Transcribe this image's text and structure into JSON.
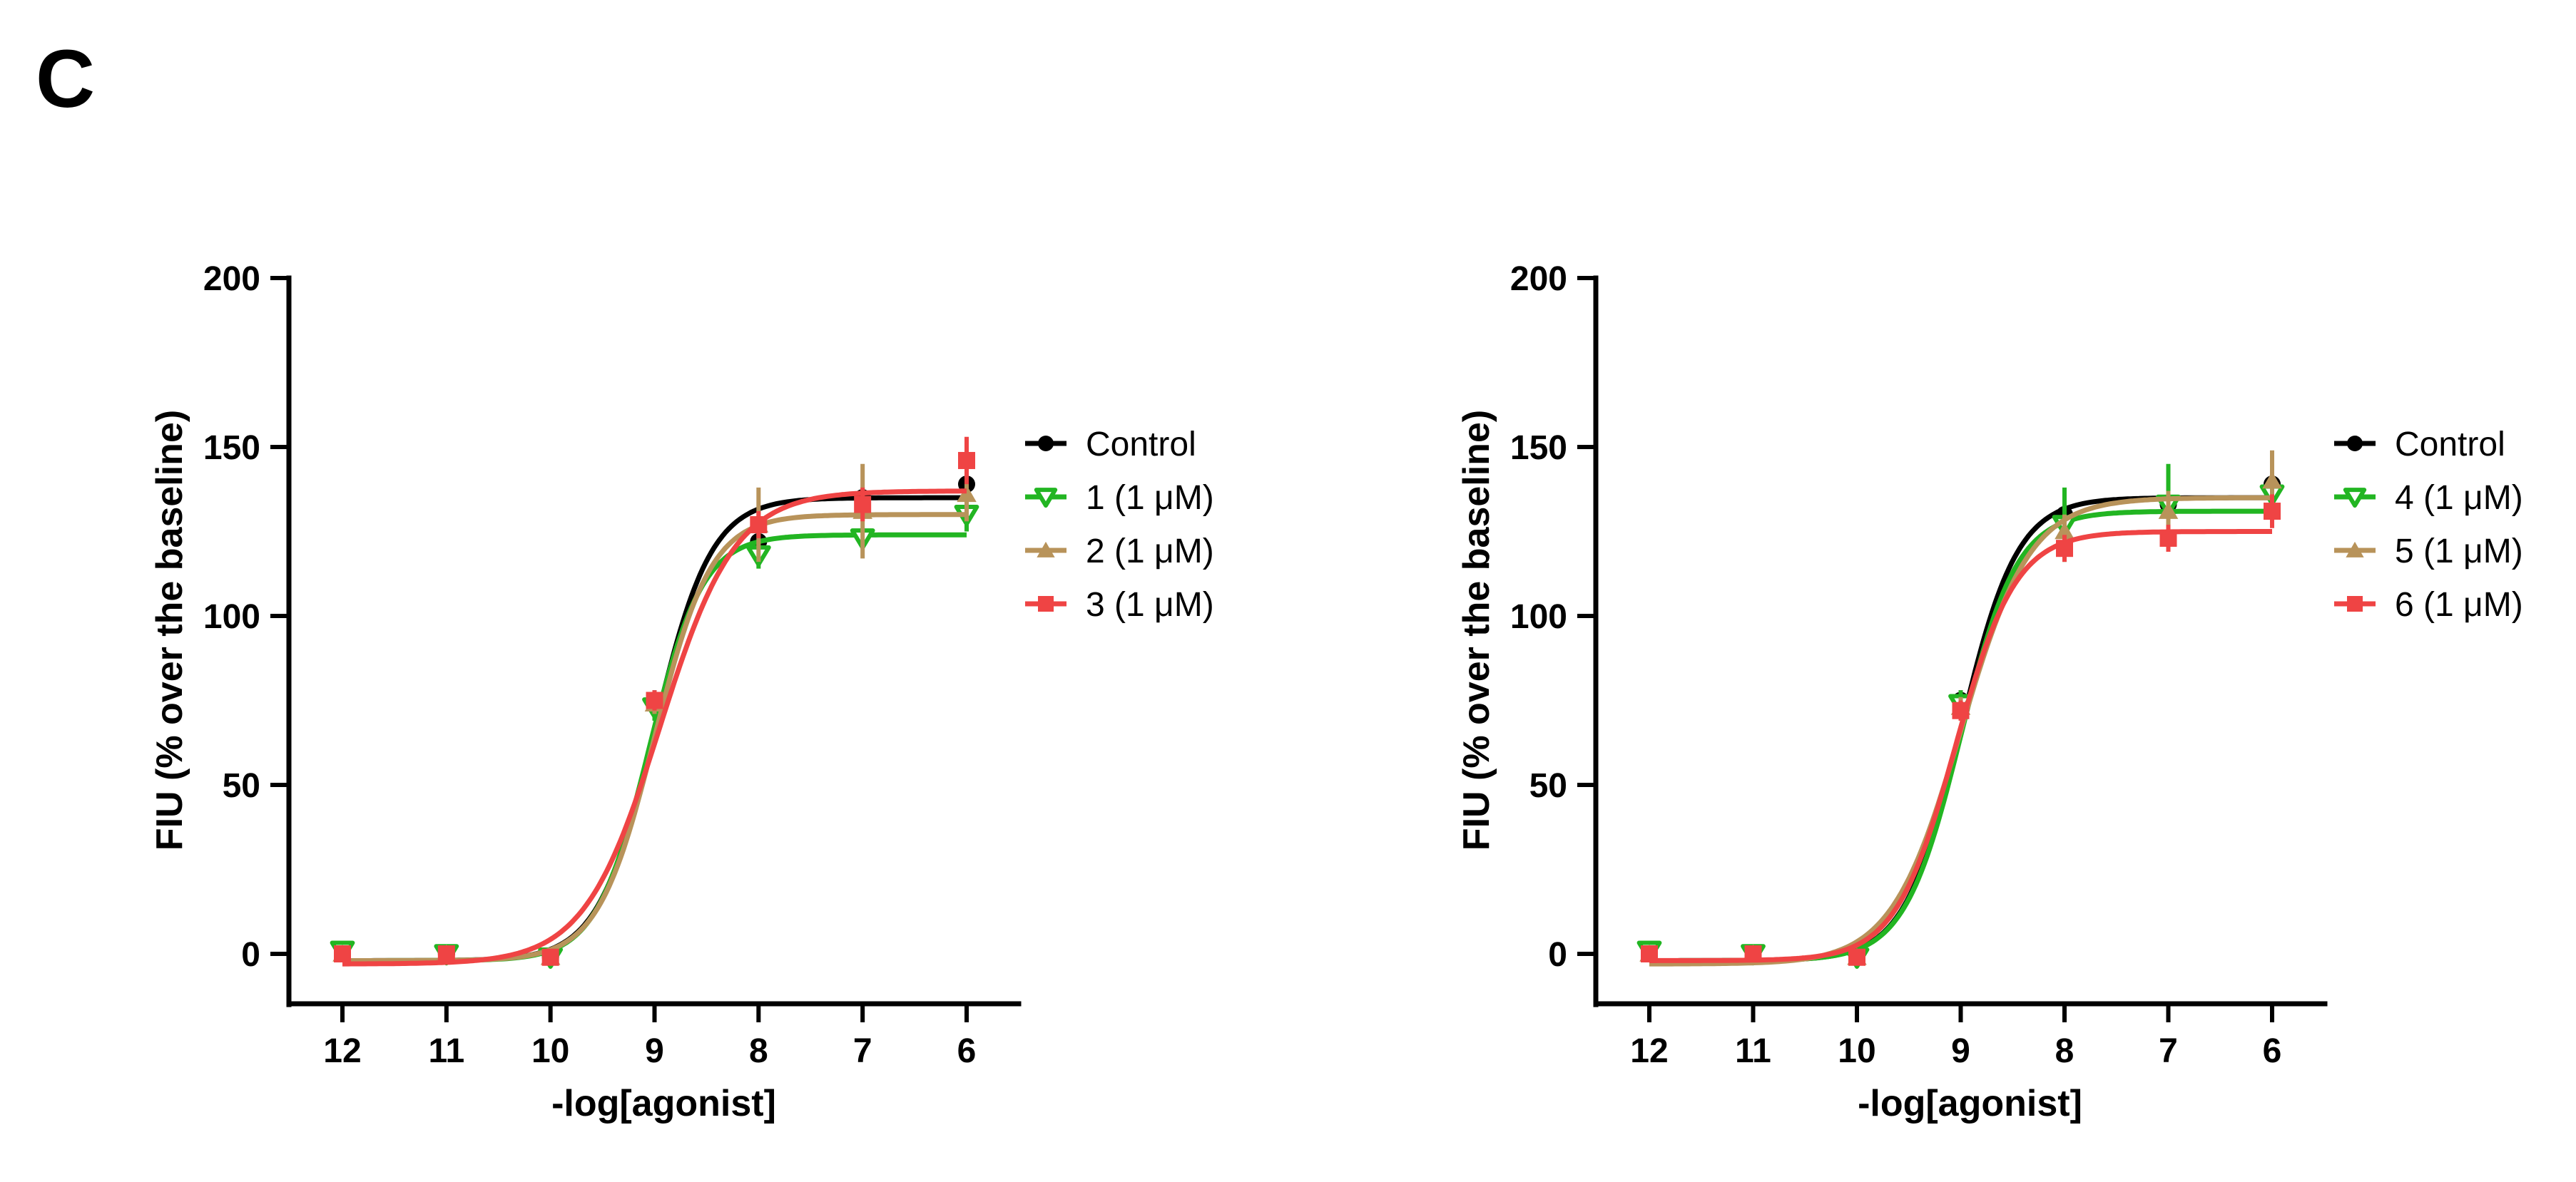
{
  "panel_label": "C",
  "chart_data": [
    {
      "type": "line",
      "xlabel": "-log[agonist]",
      "ylabel": "FIU (% over the baseline)",
      "x_ticks": [
        12,
        11,
        10,
        9,
        8,
        7,
        6
      ],
      "y_ticks": [
        0,
        50,
        100,
        150,
        200
      ],
      "xlim": [
        12.5,
        5.5
      ],
      "ylim": [
        -15,
        200
      ],
      "x_reversed": true,
      "grid": false,
      "legend_position": "right",
      "x": [
        12,
        11,
        10,
        9,
        8,
        7,
        6
      ],
      "series": [
        {
          "name": "Control",
          "color": "#000000",
          "marker": "circle",
          "values": [
            0,
            0,
            -1,
            75,
            122,
            135,
            139
          ],
          "errors": [
            1,
            1,
            1,
            3,
            3,
            2,
            4
          ],
          "fit": {
            "bottom": -2,
            "top": 135,
            "logEC50": -9.0,
            "hill": 1.6
          }
        },
        {
          "name": "1 (1 μM)",
          "color": "#22b522",
          "marker": "triangle-down",
          "values": [
            1,
            0,
            -1,
            73,
            118,
            123,
            130
          ],
          "errors": [
            2,
            1,
            1,
            4,
            4,
            3,
            5
          ],
          "fit": {
            "bottom": -2,
            "top": 124,
            "logEC50": -9.05,
            "hill": 1.7
          }
        },
        {
          "name": "2 (1 μM)",
          "color": "#b8935a",
          "marker": "triangle-up",
          "values": [
            0,
            0,
            -1,
            74,
            127,
            131,
            136
          ],
          "errors": [
            1,
            1,
            1,
            3,
            11,
            14,
            8
          ],
          "fit": {
            "bottom": -2,
            "top": 130,
            "logEC50": -9.0,
            "hill": 1.6
          }
        },
        {
          "name": "3 (1 μM)",
          "color": "#ef4444",
          "marker": "square",
          "values": [
            0,
            0,
            -1,
            75,
            127,
            133,
            146
          ],
          "errors": [
            1,
            1,
            1,
            3,
            4,
            5,
            7
          ],
          "fit": {
            "bottom": -3,
            "top": 137,
            "logEC50": -8.95,
            "hill": 1.2
          }
        }
      ]
    },
    {
      "type": "line",
      "xlabel": "-log[agonist]",
      "ylabel": "FIU (% over the baseline)",
      "x_ticks": [
        12,
        11,
        10,
        9,
        8,
        7,
        6
      ],
      "y_ticks": [
        0,
        50,
        100,
        150,
        200
      ],
      "xlim": [
        12.5,
        5.5
      ],
      "ylim": [
        -15,
        200
      ],
      "x_reversed": true,
      "grid": false,
      "legend_position": "right",
      "x": [
        12,
        11,
        10,
        9,
        8,
        7,
        6
      ],
      "series": [
        {
          "name": "Control",
          "color": "#000000",
          "marker": "circle",
          "values": [
            0,
            0,
            -1,
            75,
            130,
            133,
            139
          ],
          "errors": [
            1,
            1,
            1,
            3,
            3,
            3,
            4
          ],
          "fit": {
            "bottom": -2,
            "top": 135,
            "logEC50": -9.0,
            "hill": 1.6
          }
        },
        {
          "name": "4 (1 μM)",
          "color": "#22b522",
          "marker": "triangle-down",
          "values": [
            1,
            0,
            -1,
            74,
            127,
            133,
            136
          ],
          "errors": [
            2,
            1,
            1,
            4,
            11,
            12,
            6
          ],
          "fit": {
            "bottom": -2,
            "top": 131,
            "logEC50": -9.0,
            "hill": 1.6
          }
        },
        {
          "name": "5 (1 μM)",
          "color": "#b8935a",
          "marker": "triangle-up",
          "values": [
            0,
            0,
            -1,
            73,
            125,
            131,
            140
          ],
          "errors": [
            1,
            1,
            1,
            3,
            5,
            6,
            9
          ],
          "fit": {
            "bottom": -3,
            "top": 135,
            "logEC50": -9.0,
            "hill": 1.3
          }
        },
        {
          "name": "6 (1 μM)",
          "color": "#ef4444",
          "marker": "square",
          "values": [
            0,
            0,
            -1,
            72,
            120,
            123,
            131
          ],
          "errors": [
            1,
            1,
            1,
            3,
            4,
            4,
            5
          ],
          "fit": {
            "bottom": -2,
            "top": 125,
            "logEC50": -9.05,
            "hill": 1.5
          }
        }
      ]
    }
  ]
}
